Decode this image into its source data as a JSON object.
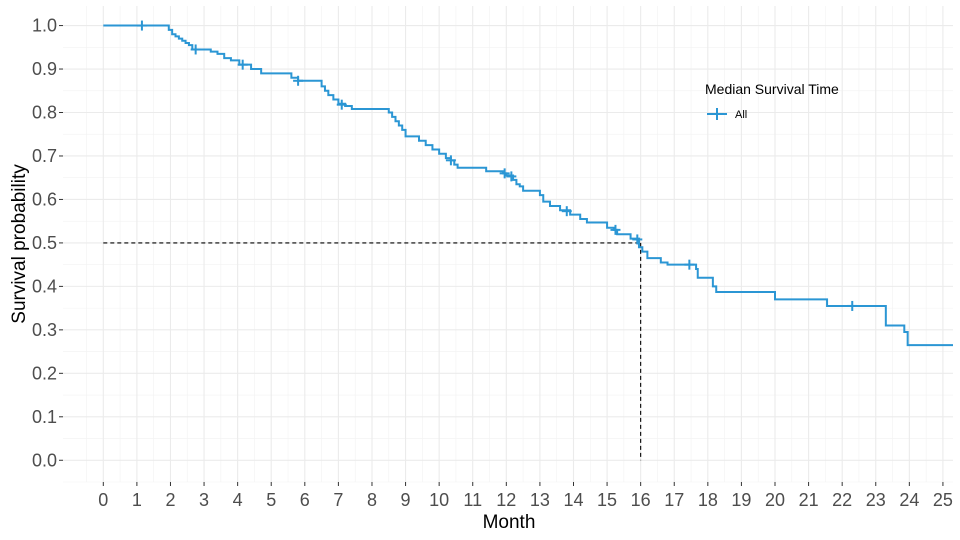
{
  "chart_data": {
    "type": "line",
    "chart_kind": "kaplan-meier step curve",
    "xlabel": "Month",
    "ylabel": "Survival probability",
    "xlim": [
      -1.2,
      25.3
    ],
    "ylim": [
      -0.05,
      1.045
    ],
    "x_ticks": [
      0,
      1,
      2,
      3,
      4,
      5,
      6,
      7,
      8,
      9,
      10,
      11,
      12,
      13,
      14,
      15,
      16,
      17,
      18,
      19,
      20,
      21,
      22,
      23,
      24,
      25
    ],
    "x_tick_labels": [
      "0",
      "1",
      "2",
      "3",
      "4",
      "5",
      "6",
      "7",
      "8",
      "9",
      "10",
      "11",
      "12",
      "13",
      "14",
      "15",
      "16",
      "17",
      "18",
      "19",
      "20",
      "21",
      "22",
      "23",
      "24",
      "25"
    ],
    "y_ticks": [
      0,
      0.1,
      0.2,
      0.3,
      0.4,
      0.5,
      0.6,
      0.7,
      0.8,
      0.9,
      1.0
    ],
    "y_tick_labels": [
      "0.0",
      "0.1",
      "0.2",
      "0.3",
      "0.4",
      "0.5",
      "0.6",
      "0.7",
      "0.8",
      "0.9",
      "1.0"
    ],
    "grid": true,
    "legend": {
      "title": "Median Survival Time",
      "position": "top-right",
      "entries": [
        {
          "label": "All",
          "color": "#2b96d4"
        }
      ]
    },
    "series": [
      {
        "name": "All",
        "color": "#2b96d4",
        "steps": [
          [
            0,
            1.0
          ],
          [
            1.95,
            0.99
          ],
          [
            2.05,
            0.98
          ],
          [
            2.15,
            0.975
          ],
          [
            2.25,
            0.97
          ],
          [
            2.35,
            0.965
          ],
          [
            2.45,
            0.96
          ],
          [
            2.55,
            0.955
          ],
          [
            2.65,
            0.945
          ],
          [
            3.2,
            0.94
          ],
          [
            3.4,
            0.935
          ],
          [
            3.6,
            0.925
          ],
          [
            3.8,
            0.92
          ],
          [
            4.05,
            0.91
          ],
          [
            4.4,
            0.9
          ],
          [
            4.7,
            0.89
          ],
          [
            5.6,
            0.88
          ],
          [
            5.8,
            0.873
          ],
          [
            6.5,
            0.86
          ],
          [
            6.6,
            0.85
          ],
          [
            6.7,
            0.84
          ],
          [
            6.85,
            0.83
          ],
          [
            7.0,
            0.82
          ],
          [
            7.2,
            0.815
          ],
          [
            7.4,
            0.808
          ],
          [
            8.5,
            0.8
          ],
          [
            8.6,
            0.79
          ],
          [
            8.7,
            0.78
          ],
          [
            8.8,
            0.77
          ],
          [
            8.9,
            0.76
          ],
          [
            9.0,
            0.745
          ],
          [
            9.4,
            0.735
          ],
          [
            9.6,
            0.725
          ],
          [
            9.8,
            0.715
          ],
          [
            10.0,
            0.705
          ],
          [
            10.2,
            0.695
          ],
          [
            10.35,
            0.69
          ],
          [
            10.45,
            0.68
          ],
          [
            10.55,
            0.673
          ],
          [
            11.4,
            0.665
          ],
          [
            11.9,
            0.66
          ],
          [
            12.0,
            0.655
          ],
          [
            12.2,
            0.645
          ],
          [
            12.3,
            0.635
          ],
          [
            12.4,
            0.63
          ],
          [
            12.5,
            0.62
          ],
          [
            13.0,
            0.61
          ],
          [
            13.1,
            0.595
          ],
          [
            13.3,
            0.585
          ],
          [
            13.6,
            0.575
          ],
          [
            13.9,
            0.565
          ],
          [
            14.2,
            0.555
          ],
          [
            14.4,
            0.547
          ],
          [
            15.0,
            0.535
          ],
          [
            15.2,
            0.53
          ],
          [
            15.3,
            0.52
          ],
          [
            15.7,
            0.51
          ],
          [
            15.95,
            0.49
          ],
          [
            16.05,
            0.48
          ],
          [
            16.2,
            0.465
          ],
          [
            16.6,
            0.455
          ],
          [
            16.8,
            0.45
          ],
          [
            17.65,
            0.44
          ],
          [
            17.7,
            0.42
          ],
          [
            18.15,
            0.4
          ],
          [
            18.25,
            0.387
          ],
          [
            20.0,
            0.37
          ],
          [
            21.55,
            0.355
          ],
          [
            23.3,
            0.31
          ],
          [
            23.85,
            0.295
          ],
          [
            23.95,
            0.265
          ],
          [
            25.3,
            0.265
          ]
        ],
        "censor_marks": [
          [
            1.15,
            1.0
          ],
          [
            2.75,
            0.945
          ],
          [
            4.15,
            0.91
          ],
          [
            5.8,
            0.873
          ],
          [
            7.1,
            0.818
          ],
          [
            10.35,
            0.69
          ],
          [
            11.95,
            0.66
          ],
          [
            12.15,
            0.653
          ],
          [
            13.8,
            0.573
          ],
          [
            15.25,
            0.53
          ],
          [
            15.9,
            0.508
          ],
          [
            17.45,
            0.45
          ],
          [
            22.3,
            0.355
          ]
        ]
      }
    ],
    "median_reference": {
      "x": 16.0,
      "y": 0.5,
      "style": "dashed",
      "color": "#000000"
    }
  }
}
